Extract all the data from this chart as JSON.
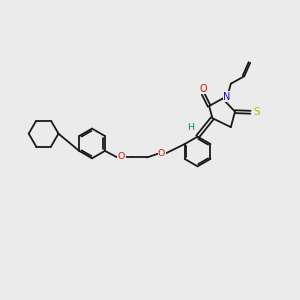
{
  "bg_color": "#ebebeb",
  "bond_color": "#1a1a1a",
  "lw": 1.3,
  "atom_colors": {
    "O": "#dd1100",
    "N": "#2200cc",
    "S_thioxo": "#bbbb00",
    "S_ring": "#008888",
    "H": "#008888"
  },
  "fig_w": 3.0,
  "fig_h": 3.0,
  "dpi": 100,
  "xlim": [
    0,
    10
  ],
  "ylim": [
    0,
    10
  ]
}
